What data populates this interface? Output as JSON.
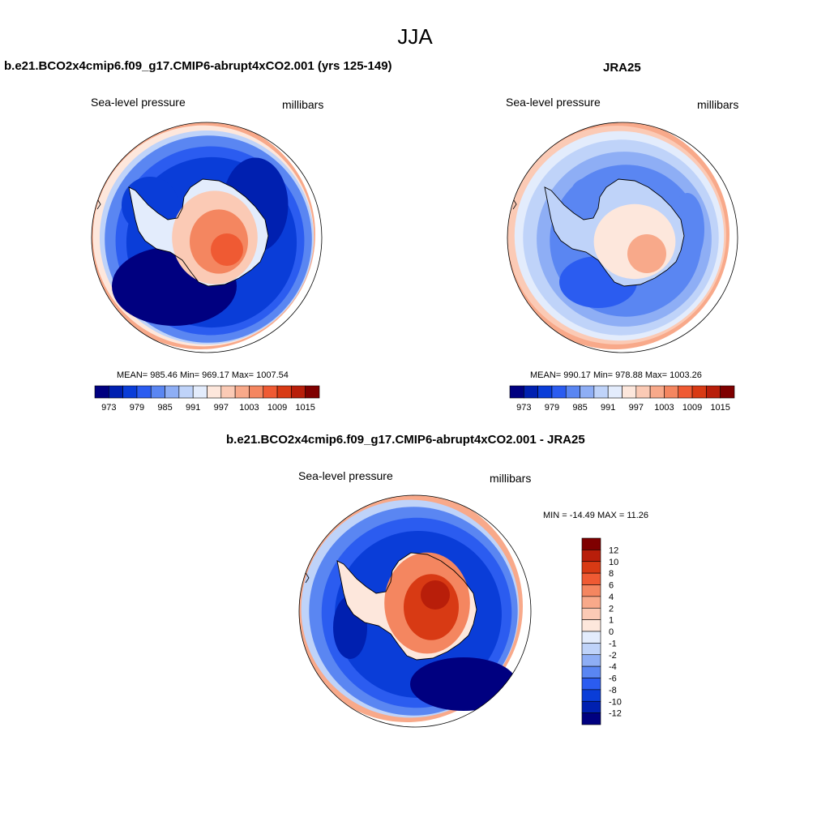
{
  "page": {
    "title": "JJA"
  },
  "colors": {
    "abs_levels": [
      "#000080",
      "#0020b0",
      "#0a3dd8",
      "#2b5cf0",
      "#5a86f2",
      "#8eaef5",
      "#bfd3f9",
      "#e3ecfc",
      "#fde7dc",
      "#fbcab5",
      "#f8a98a",
      "#f48660",
      "#ef5a33",
      "#d83a14",
      "#b81e0a",
      "#7f0000"
    ],
    "diff_levels": [
      "#000080",
      "#0020b0",
      "#0a3dd8",
      "#2b5cf0",
      "#5a86f2",
      "#8eaef5",
      "#bfd3f9",
      "#e3ecfc",
      "#fde7dc",
      "#fbcab5",
      "#f8a98a",
      "#f48660",
      "#ef5a33",
      "#d83a14",
      "#b81e0a",
      "#7f0000"
    ]
  },
  "chart_data": [
    {
      "type": "heatmap",
      "title": "b.e21.BCO2x4cmip6.f09_g17.CMIP6-abrupt4xCO2.001 (yrs 125-149)",
      "left_label": "Sea-level pressure",
      "right_label": "millibars",
      "stats": {
        "mean": "985.46",
        "min": "969.17",
        "max": "1007.54"
      },
      "stats_text": "MEAN= 985.46  Min= 969.17  Max= 1007.54",
      "colorbar_ticks": [
        "973",
        "979",
        "985",
        "991",
        "997",
        "1003",
        "1009",
        "1015"
      ],
      "levels": [
        970,
        973,
        976,
        979,
        982,
        985,
        988,
        991,
        994,
        997,
        1000,
        1003,
        1006,
        1009,
        1012,
        1015
      ]
    },
    {
      "type": "heatmap",
      "title": "JRA25",
      "left_label": "Sea-level pressure",
      "right_label": "millibars",
      "stats": {
        "mean": "990.17",
        "min": "978.88",
        "max": "1003.26"
      },
      "stats_text": "MEAN= 990.17  Min= 978.88  Max= 1003.26",
      "colorbar_ticks": [
        "973",
        "979",
        "985",
        "991",
        "997",
        "1003",
        "1009",
        "1015"
      ],
      "levels": [
        970,
        973,
        976,
        979,
        982,
        985,
        988,
        991,
        994,
        997,
        1000,
        1003,
        1006,
        1009,
        1012,
        1015
      ]
    },
    {
      "type": "heatmap",
      "title": "b.e21.BCO2x4cmip6.f09_g17.CMIP6-abrupt4xCO2.001 - JRA25",
      "left_label": "Sea-level pressure",
      "right_label": "millibars",
      "stats": {
        "min": "-14.49",
        "max": "11.26"
      },
      "stats_text": "MIN = -14.49 MAX =  11.26",
      "colorbar_ticks": [
        "12",
        "10",
        "8",
        "6",
        "4",
        "2",
        "1",
        "0",
        "-1",
        "-2",
        "-4",
        "-6",
        "-8",
        "-10",
        "-12"
      ],
      "levels": [
        -12,
        -10,
        -8,
        -6,
        -4,
        -2,
        -1,
        0,
        1,
        2,
        4,
        6,
        8,
        10,
        12
      ]
    }
  ]
}
